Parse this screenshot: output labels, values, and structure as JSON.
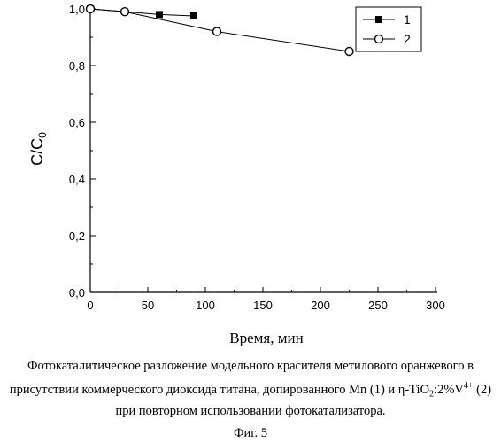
{
  "chart_data": {
    "type": "line",
    "xlabel": "Время, мин",
    "ylabel_main": "C/C",
    "ylabel_sub": "0",
    "xlim": [
      0,
      300
    ],
    "ylim": [
      0,
      1.0
    ],
    "x_ticks": [
      "0",
      "50",
      "100",
      "150",
      "200",
      "250",
      "300"
    ],
    "y_ticks": [
      "0,0",
      "0,2",
      "0,4",
      "0,6",
      "0,8",
      "1,0"
    ],
    "grid": false,
    "legend_position": "top-right",
    "series": [
      {
        "name": "1",
        "marker": "filled-square",
        "color": "#000000",
        "x": [
          0,
          60,
          90
        ],
        "y": [
          1.0,
          0.98,
          0.975
        ]
      },
      {
        "name": "2",
        "marker": "open-circle",
        "color": "#000000",
        "x": [
          0,
          30,
          110,
          225
        ],
        "y": [
          1.0,
          0.99,
          0.92,
          0.85
        ]
      }
    ]
  },
  "caption": {
    "line1": "Фотокаталитическое разложение модельного красителя метилового оранжевого в",
    "line2_pre": "присутствии коммерческого диоксида титана, допированного Mn (1) и η-TiO",
    "line2_sub": "2",
    "line2_mid": ":2%V",
    "line2_sup": "4+",
    "line2_post": " (2)",
    "line3": "при повторном использовании фотокатализатора.",
    "fig_label": "Фиг. 5"
  }
}
